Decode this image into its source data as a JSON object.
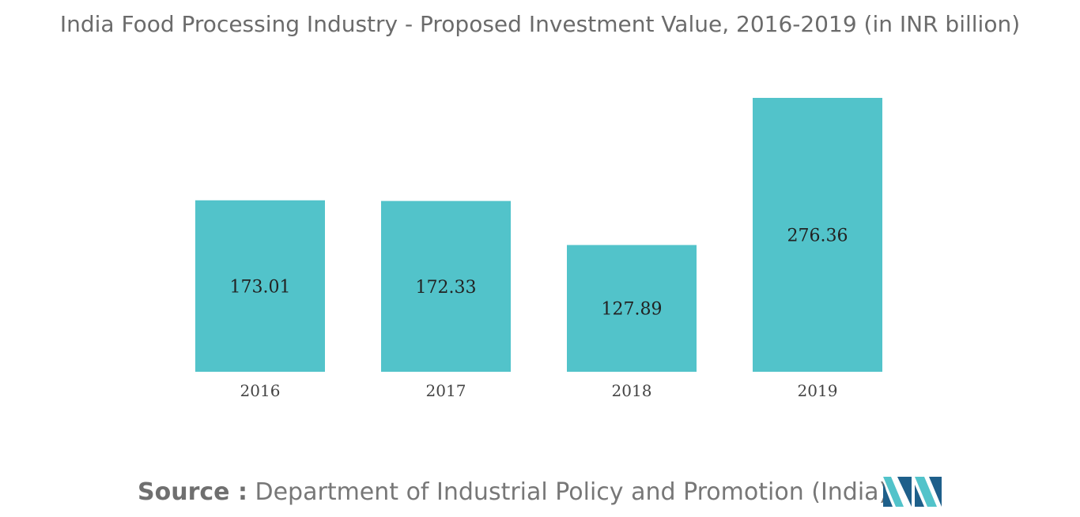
{
  "chart_data": {
    "type": "bar",
    "title": "India Food Processing Industry - Proposed Investment Value, 2016-2019 (in INR billion)",
    "categories": [
      "2016",
      "2017",
      "2018",
      "2019"
    ],
    "values": [
      173.01,
      172.33,
      127.89,
      276.36
    ],
    "value_labels": [
      "173.01",
      "172.33",
      "127.89",
      "276.36"
    ],
    "xlabel": "",
    "ylabel": "",
    "ylim": [
      0,
      300
    ],
    "grid": false,
    "legend": "none",
    "bar_color": "#52c3ca"
  },
  "source": {
    "label": "Source :",
    "text": "Department of Industrial Policy and Promotion (India)"
  },
  "logo": {
    "name": "mordor-intelligence-logo-icon",
    "color_dark": "#1e5f8a",
    "color_light": "#52c3ca"
  }
}
